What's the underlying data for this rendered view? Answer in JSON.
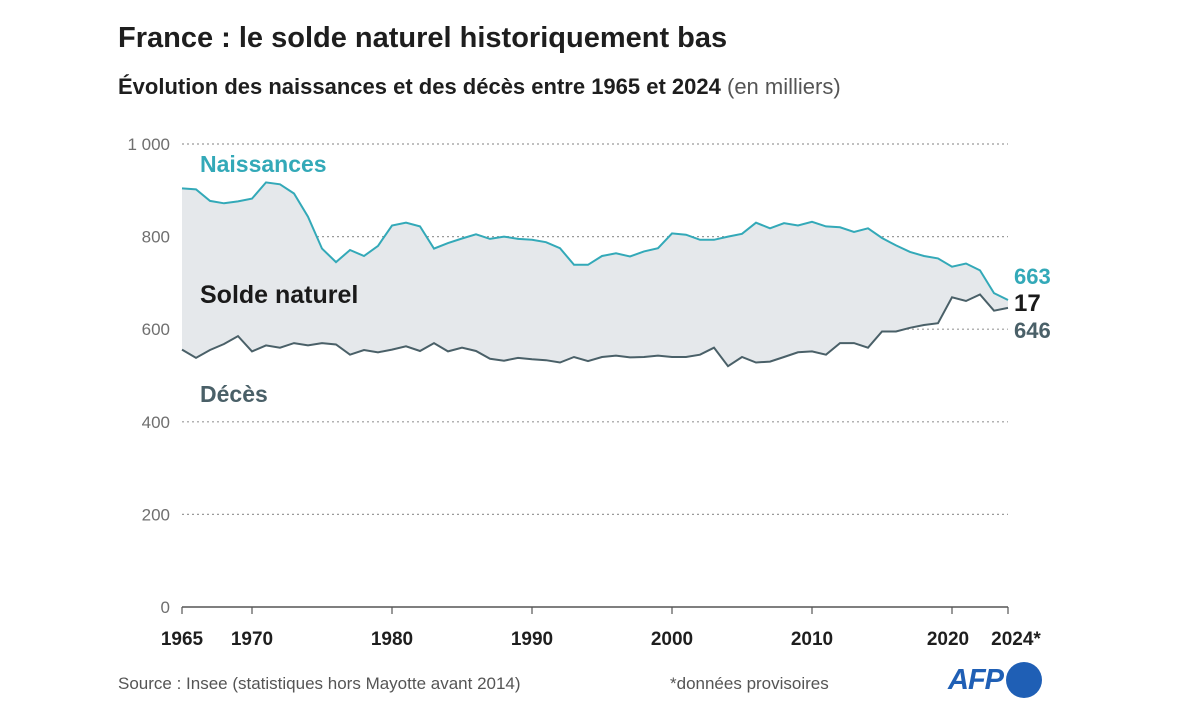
{
  "title": "France : le solde naturel historiquement bas",
  "subtitle_bold": "Évolution des naissances et des décès entre 1965 et 2024",
  "subtitle_unit": "(en milliers)",
  "footer": {
    "source": "Source : Insee (statistiques hors Mayotte avant 2014)",
    "note": "*données provisoires",
    "logo": "AFP"
  },
  "colors": {
    "births": "#33a9b8",
    "deaths": "#4a6068",
    "fill": "#e5e8eb",
    "solde": "#1a1a1a",
    "logo": "#1f5fb5"
  },
  "chart_data": {
    "type": "area",
    "title": "France : le solde naturel historiquement bas",
    "ylim": [
      0,
      1000
    ],
    "y_ticks": [
      0,
      200,
      400,
      600,
      800,
      1000
    ],
    "y_tick_labels": [
      "0",
      "200",
      "400",
      "600",
      "800",
      "1 000"
    ],
    "xlim": [
      1965,
      2024
    ],
    "x_ticks": [
      1965,
      1970,
      1980,
      1990,
      2000,
      2010,
      2020,
      2024
    ],
    "x_tick_labels": [
      "1965",
      "1970",
      "1980",
      "1990",
      "2000",
      "2010",
      "2020",
      "2024*"
    ],
    "grid": true,
    "band_label": "Solde naturel",
    "x": [
      1965,
      1966,
      1967,
      1968,
      1969,
      1970,
      1971,
      1972,
      1973,
      1974,
      1975,
      1976,
      1977,
      1978,
      1979,
      1980,
      1981,
      1982,
      1983,
      1984,
      1985,
      1986,
      1987,
      1988,
      1989,
      1990,
      1991,
      1992,
      1993,
      1994,
      1995,
      1996,
      1997,
      1998,
      1999,
      2000,
      2001,
      2002,
      2003,
      2004,
      2005,
      2006,
      2007,
      2008,
      2009,
      2010,
      2011,
      2012,
      2013,
      2014,
      2015,
      2016,
      2017,
      2018,
      2019,
      2020,
      2021,
      2022,
      2023,
      2024
    ],
    "series": [
      {
        "name": "Naissances",
        "end_label": "663",
        "values": [
          904,
          902,
          877,
          872,
          876,
          882,
          917,
          913,
          893,
          843,
          774,
          745,
          771,
          758,
          780,
          824,
          830,
          822,
          774,
          786,
          796,
          805,
          795,
          800,
          795,
          793,
          788,
          775,
          739,
          739,
          758,
          764,
          757,
          768,
          775,
          807,
          804,
          793,
          793,
          800,
          806,
          830,
          818,
          829,
          824,
          832,
          822,
          820,
          810,
          818,
          797,
          781,
          767,
          758,
          753,
          735,
          742,
          727,
          678,
          663
        ]
      },
      {
        "name": "Décès",
        "end_label": "646",
        "values": [
          556,
          538,
          555,
          568,
          585,
          552,
          565,
          560,
          570,
          565,
          570,
          567,
          545,
          555,
          550,
          556,
          563,
          553,
          570,
          552,
          560,
          553,
          536,
          532,
          538,
          535,
          533,
          528,
          540,
          531,
          540,
          543,
          539,
          540,
          543,
          540,
          540,
          545,
          560,
          520,
          540,
          528,
          530,
          540,
          550,
          552,
          545,
          570,
          570,
          560,
          595,
          595,
          603,
          609,
          613,
          669,
          661,
          675,
          640,
          646
        ]
      }
    ],
    "end_difference_label": "17"
  }
}
